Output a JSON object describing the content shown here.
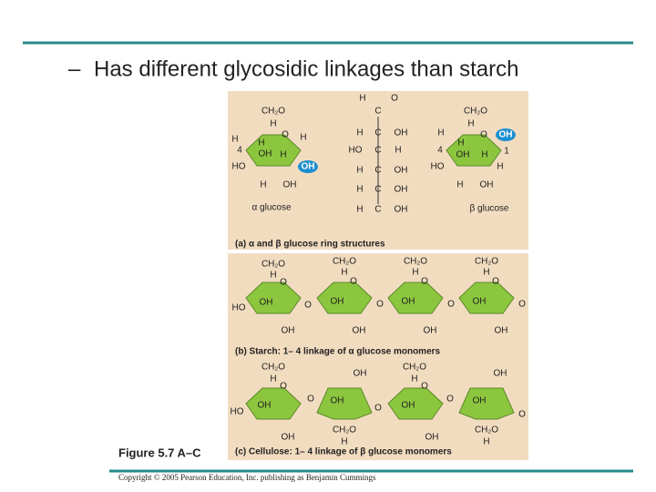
{
  "bullet": {
    "marker": "–",
    "text": "Has different glycosidic linkages than starch"
  },
  "panel_a": {
    "alpha_labels": [
      "CH₂O",
      "H",
      "O",
      "H",
      "H",
      "4",
      "H",
      "OH",
      "H",
      "HO",
      "H",
      "OH"
    ],
    "alpha_oh": "OH",
    "alpha_name": "α glucose",
    "chain_labels": [
      "H",
      "O",
      "C",
      "H",
      "C",
      "OH",
      "HO",
      "C",
      "H",
      "H",
      "C",
      "OH",
      "H",
      "C",
      "OH",
      "H",
      "C",
      "OH"
    ],
    "beta_labels": [
      "CH₂O",
      "H",
      "O",
      "H",
      "4",
      "H",
      "OH",
      "H",
      "1",
      "HO",
      "H",
      "H",
      "OH"
    ],
    "beta_oh": "OH",
    "beta_name": "β glucose",
    "caption": "(a) α and β glucose ring structures"
  },
  "panel_b": {
    "labels": [
      "CH₂O",
      "H",
      "O",
      "OH",
      "HO",
      "OH",
      "O",
      "CH₂O",
      "H",
      "O",
      "OH",
      "OH",
      "O",
      "CH₂O",
      "H",
      "O",
      "OH",
      "OH",
      "O",
      "CH₂O",
      "H",
      "O",
      "OH",
      "OH",
      "O"
    ],
    "caption": "(b) Starch: 1– 4 linkage of α glucose monomers"
  },
  "panel_c": {
    "labels": [
      "CH₂O",
      "H",
      "O",
      "OH",
      "HO",
      "OH",
      "O",
      "OH",
      "OH",
      "O",
      "CH₂O",
      "H",
      "CH₂O",
      "H",
      "O",
      "OH",
      "OH",
      "O",
      "OH",
      "OH",
      "O",
      "CH₂O",
      "H"
    ],
    "caption": "(c) Cellulose: 1– 4 linkage of β glucose monomers"
  },
  "figure_label": "Figure 5.7 A–C",
  "copyright": "Copyright © 2005 Pearson Education, Inc. publishing as Benjamin Cummings"
}
